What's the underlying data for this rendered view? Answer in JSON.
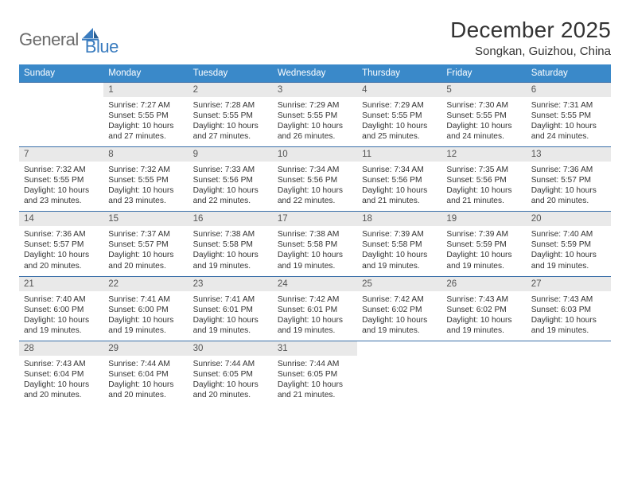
{
  "colors": {
    "header_bg": "#3a89c9",
    "header_text": "#ffffff",
    "daynum_bg": "#e9e9e9",
    "daynum_text": "#555555",
    "rule": "#3a6fa8",
    "logo_gray": "#6b6b6b",
    "logo_blue": "#3a7cbf",
    "body_text": "#333333",
    "page_bg": "#ffffff"
  },
  "logo": {
    "part1": "General",
    "part2": "Blue",
    "icon": "sail-icon"
  },
  "title": "December 2025",
  "location": "Songkan, Guizhou, China",
  "days_of_week": [
    "Sunday",
    "Monday",
    "Tuesday",
    "Wednesday",
    "Thursday",
    "Friday",
    "Saturday"
  ],
  "weeks": [
    {
      "nums": [
        "",
        "1",
        "2",
        "3",
        "4",
        "5",
        "6"
      ],
      "cells": [
        null,
        {
          "sunrise": "Sunrise: 7:27 AM",
          "sunset": "Sunset: 5:55 PM",
          "daylight": "Daylight: 10 hours and 27 minutes."
        },
        {
          "sunrise": "Sunrise: 7:28 AM",
          "sunset": "Sunset: 5:55 PM",
          "daylight": "Daylight: 10 hours and 27 minutes."
        },
        {
          "sunrise": "Sunrise: 7:29 AM",
          "sunset": "Sunset: 5:55 PM",
          "daylight": "Daylight: 10 hours and 26 minutes."
        },
        {
          "sunrise": "Sunrise: 7:29 AM",
          "sunset": "Sunset: 5:55 PM",
          "daylight": "Daylight: 10 hours and 25 minutes."
        },
        {
          "sunrise": "Sunrise: 7:30 AM",
          "sunset": "Sunset: 5:55 PM",
          "daylight": "Daylight: 10 hours and 24 minutes."
        },
        {
          "sunrise": "Sunrise: 7:31 AM",
          "sunset": "Sunset: 5:55 PM",
          "daylight": "Daylight: 10 hours and 24 minutes."
        }
      ]
    },
    {
      "nums": [
        "7",
        "8",
        "9",
        "10",
        "11",
        "12",
        "13"
      ],
      "cells": [
        {
          "sunrise": "Sunrise: 7:32 AM",
          "sunset": "Sunset: 5:55 PM",
          "daylight": "Daylight: 10 hours and 23 minutes."
        },
        {
          "sunrise": "Sunrise: 7:32 AM",
          "sunset": "Sunset: 5:55 PM",
          "daylight": "Daylight: 10 hours and 23 minutes."
        },
        {
          "sunrise": "Sunrise: 7:33 AM",
          "sunset": "Sunset: 5:56 PM",
          "daylight": "Daylight: 10 hours and 22 minutes."
        },
        {
          "sunrise": "Sunrise: 7:34 AM",
          "sunset": "Sunset: 5:56 PM",
          "daylight": "Daylight: 10 hours and 22 minutes."
        },
        {
          "sunrise": "Sunrise: 7:34 AM",
          "sunset": "Sunset: 5:56 PM",
          "daylight": "Daylight: 10 hours and 21 minutes."
        },
        {
          "sunrise": "Sunrise: 7:35 AM",
          "sunset": "Sunset: 5:56 PM",
          "daylight": "Daylight: 10 hours and 21 minutes."
        },
        {
          "sunrise": "Sunrise: 7:36 AM",
          "sunset": "Sunset: 5:57 PM",
          "daylight": "Daylight: 10 hours and 20 minutes."
        }
      ]
    },
    {
      "nums": [
        "14",
        "15",
        "16",
        "17",
        "18",
        "19",
        "20"
      ],
      "cells": [
        {
          "sunrise": "Sunrise: 7:36 AM",
          "sunset": "Sunset: 5:57 PM",
          "daylight": "Daylight: 10 hours and 20 minutes."
        },
        {
          "sunrise": "Sunrise: 7:37 AM",
          "sunset": "Sunset: 5:57 PM",
          "daylight": "Daylight: 10 hours and 20 minutes."
        },
        {
          "sunrise": "Sunrise: 7:38 AM",
          "sunset": "Sunset: 5:58 PM",
          "daylight": "Daylight: 10 hours and 19 minutes."
        },
        {
          "sunrise": "Sunrise: 7:38 AM",
          "sunset": "Sunset: 5:58 PM",
          "daylight": "Daylight: 10 hours and 19 minutes."
        },
        {
          "sunrise": "Sunrise: 7:39 AM",
          "sunset": "Sunset: 5:58 PM",
          "daylight": "Daylight: 10 hours and 19 minutes."
        },
        {
          "sunrise": "Sunrise: 7:39 AM",
          "sunset": "Sunset: 5:59 PM",
          "daylight": "Daylight: 10 hours and 19 minutes."
        },
        {
          "sunrise": "Sunrise: 7:40 AM",
          "sunset": "Sunset: 5:59 PM",
          "daylight": "Daylight: 10 hours and 19 minutes."
        }
      ]
    },
    {
      "nums": [
        "21",
        "22",
        "23",
        "24",
        "25",
        "26",
        "27"
      ],
      "cells": [
        {
          "sunrise": "Sunrise: 7:40 AM",
          "sunset": "Sunset: 6:00 PM",
          "daylight": "Daylight: 10 hours and 19 minutes."
        },
        {
          "sunrise": "Sunrise: 7:41 AM",
          "sunset": "Sunset: 6:00 PM",
          "daylight": "Daylight: 10 hours and 19 minutes."
        },
        {
          "sunrise": "Sunrise: 7:41 AM",
          "sunset": "Sunset: 6:01 PM",
          "daylight": "Daylight: 10 hours and 19 minutes."
        },
        {
          "sunrise": "Sunrise: 7:42 AM",
          "sunset": "Sunset: 6:01 PM",
          "daylight": "Daylight: 10 hours and 19 minutes."
        },
        {
          "sunrise": "Sunrise: 7:42 AM",
          "sunset": "Sunset: 6:02 PM",
          "daylight": "Daylight: 10 hours and 19 minutes."
        },
        {
          "sunrise": "Sunrise: 7:43 AM",
          "sunset": "Sunset: 6:02 PM",
          "daylight": "Daylight: 10 hours and 19 minutes."
        },
        {
          "sunrise": "Sunrise: 7:43 AM",
          "sunset": "Sunset: 6:03 PM",
          "daylight": "Daylight: 10 hours and 19 minutes."
        }
      ]
    },
    {
      "nums": [
        "28",
        "29",
        "30",
        "31",
        "",
        "",
        ""
      ],
      "cells": [
        {
          "sunrise": "Sunrise: 7:43 AM",
          "sunset": "Sunset: 6:04 PM",
          "daylight": "Daylight: 10 hours and 20 minutes."
        },
        {
          "sunrise": "Sunrise: 7:44 AM",
          "sunset": "Sunset: 6:04 PM",
          "daylight": "Daylight: 10 hours and 20 minutes."
        },
        {
          "sunrise": "Sunrise: 7:44 AM",
          "sunset": "Sunset: 6:05 PM",
          "daylight": "Daylight: 10 hours and 20 minutes."
        },
        {
          "sunrise": "Sunrise: 7:44 AM",
          "sunset": "Sunset: 6:05 PM",
          "daylight": "Daylight: 10 hours and 21 minutes."
        },
        null,
        null,
        null
      ]
    }
  ]
}
